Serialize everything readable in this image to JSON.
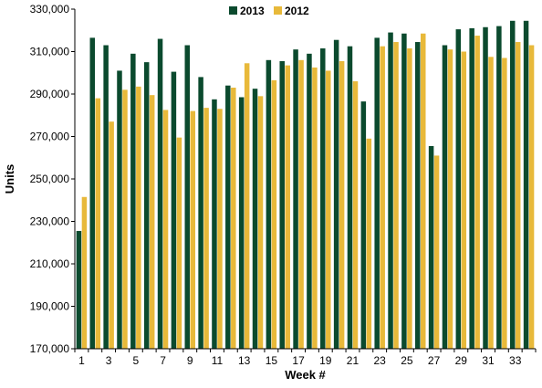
{
  "chart_data": {
    "type": "bar",
    "xlabel": "Week #",
    "ylabel": "Units",
    "ylim": [
      170000,
      330000
    ],
    "yticks": [
      170000,
      190000,
      210000,
      230000,
      250000,
      270000,
      290000,
      310000,
      330000
    ],
    "ytick_labels": [
      "170,000",
      "190,000",
      "210,000",
      "230,000",
      "250,000",
      "270,000",
      "290,000",
      "310,000",
      "330,000"
    ],
    "categories": [
      1,
      2,
      3,
      4,
      5,
      6,
      7,
      8,
      9,
      10,
      11,
      12,
      13,
      14,
      15,
      16,
      17,
      18,
      19,
      20,
      21,
      22,
      23,
      24,
      25,
      26,
      27,
      28,
      29,
      30,
      31,
      32,
      33,
      34
    ],
    "xtick_labels": [
      "1",
      "3",
      "5",
      "7",
      "9",
      "11",
      "13",
      "15",
      "17",
      "19",
      "21",
      "23",
      "25",
      "27",
      "29",
      "31",
      "33"
    ],
    "legend_position": "top",
    "grid": false,
    "series": [
      {
        "name": "2013",
        "color": "#0b4a2e",
        "values": [
          225500,
          316500,
          313000,
          301000,
          309000,
          305000,
          316000,
          300500,
          313000,
          298000,
          287500,
          294000,
          288500,
          292500,
          306000,
          305500,
          311000,
          309000,
          311500,
          315500,
          312500,
          286500,
          316500,
          319000,
          318500,
          314500,
          265500,
          313000,
          320500,
          321000,
          321500,
          322000,
          324500,
          324500
        ]
      },
      {
        "name": "2012",
        "color": "#e8b93a",
        "values": [
          241500,
          288000,
          277000,
          292000,
          293500,
          289500,
          282500,
          269500,
          282000,
          283500,
          283000,
          293000,
          304500,
          289000,
          296500,
          303500,
          306000,
          302500,
          301000,
          305500,
          296000,
          269000,
          312500,
          314500,
          311500,
          318500,
          261000,
          311000,
          310000,
          317500,
          307500,
          307000,
          314500,
          313000
        ]
      }
    ]
  }
}
